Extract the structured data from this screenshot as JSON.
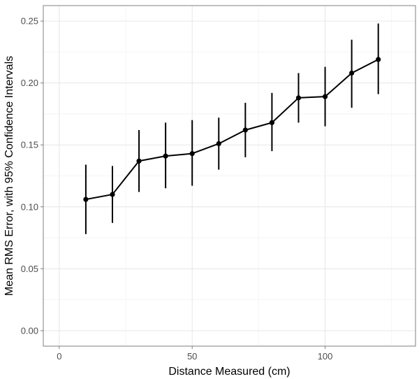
{
  "chart_data": {
    "type": "line",
    "title": "",
    "xlabel": "Distance Measured (cm)",
    "ylabel": "Mean RMS Error, with 95% Confidence Intervals",
    "xlim": [
      -6,
      134
    ],
    "ylim": [
      -0.0125,
      0.2625
    ],
    "x_ticks": [
      0,
      50,
      100
    ],
    "x_tick_labels": [
      "0",
      "50",
      "100"
    ],
    "y_ticks": [
      0.0,
      0.05,
      0.1,
      0.15,
      0.2,
      0.25
    ],
    "y_tick_labels": [
      "0.00",
      "0.05",
      "0.10",
      "0.15",
      "0.20",
      "0.25"
    ],
    "grid": true,
    "legend": "none",
    "colors": {
      "panel_border": "#7f7f7f",
      "grid": "#e6e6e6",
      "series": "#000000"
    },
    "series": [
      {
        "x": [
          10,
          20,
          30,
          40,
          50,
          60,
          70,
          80,
          90,
          100,
          110,
          120
        ],
        "y": [
          0.106,
          0.11,
          0.137,
          0.141,
          0.143,
          0.151,
          0.162,
          0.168,
          0.188,
          0.189,
          0.208,
          0.219
        ],
        "ci_low": [
          0.078,
          0.087,
          0.112,
          0.115,
          0.117,
          0.13,
          0.14,
          0.145,
          0.168,
          0.165,
          0.18,
          0.191
        ],
        "ci_high": [
          0.134,
          0.133,
          0.162,
          0.168,
          0.17,
          0.172,
          0.184,
          0.192,
          0.208,
          0.213,
          0.235,
          0.248
        ]
      }
    ]
  }
}
